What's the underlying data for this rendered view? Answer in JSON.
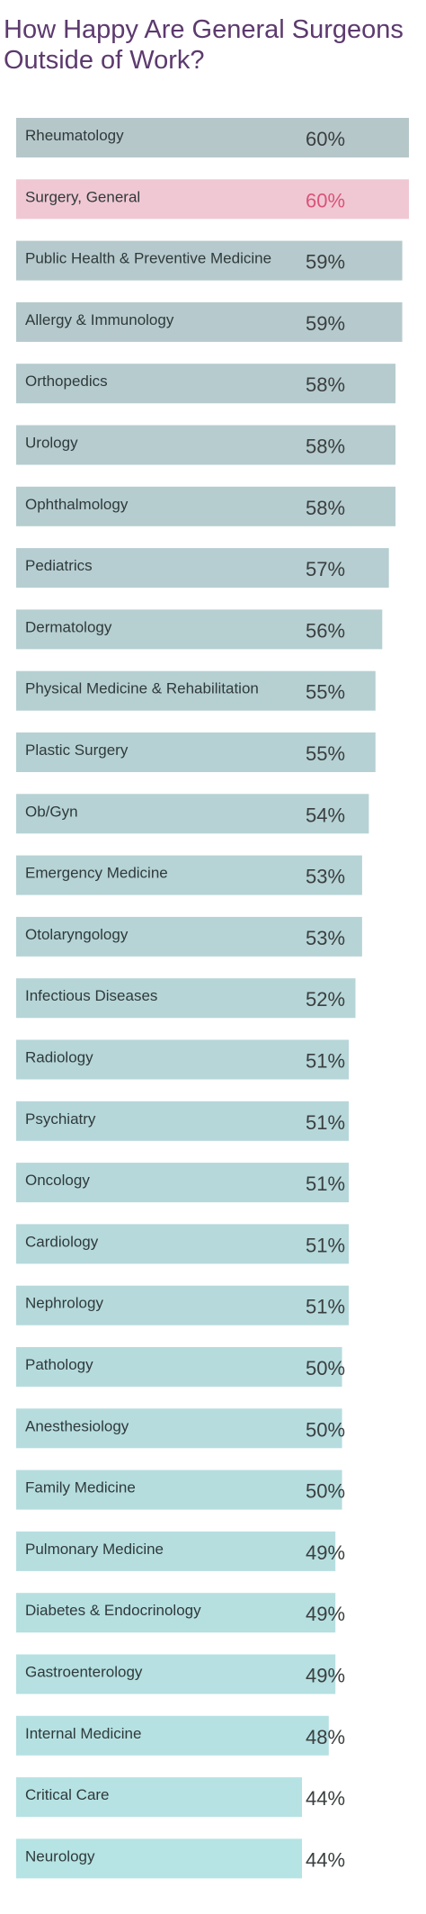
{
  "chart_data": {
    "type": "bar",
    "orientation": "horizontal",
    "title": "How Happy Are General Surgeons Outside of Work?",
    "categories": [
      "Rheumatology",
      "Surgery, General",
      "Public Health & Preventive Medicine",
      "Allergy & Immunology",
      "Orthopedics",
      "Urology",
      "Ophthalmology",
      "Pediatrics",
      "Dermatology",
      "Physical Medicine & Rehabilitation",
      "Plastic Surgery",
      "Ob/Gyn",
      "Emergency Medicine",
      "Otolaryngology",
      "Infectious Diseases",
      "Radiology",
      "Psychiatry",
      "Oncology",
      "Cardiology",
      "Nephrology",
      "Pathology",
      "Anesthesiology",
      "Family Medicine",
      "Pulmonary Medicine",
      "Diabetes & Endocrinology",
      "Gastroenterology",
      "Internal Medicine",
      "Critical Care",
      "Neurology"
    ],
    "values": [
      60,
      60,
      59,
      59,
      58,
      58,
      58,
      57,
      56,
      55,
      55,
      54,
      53,
      53,
      52,
      51,
      51,
      51,
      51,
      51,
      50,
      50,
      50,
      49,
      49,
      49,
      48,
      44,
      44
    ],
    "value_labels": [
      "60%",
      "60%",
      "59%",
      "59%",
      "58%",
      "58%",
      "58%",
      "57%",
      "56%",
      "55%",
      "55%",
      "54%",
      "53%",
      "53%",
      "52%",
      "51%",
      "51%",
      "51%",
      "51%",
      "51%",
      "50%",
      "50%",
      "50%",
      "49%",
      "49%",
      "49%",
      "48%",
      "44%",
      "44%"
    ],
    "highlight_category": "Surgery, General",
    "xlim": [
      0,
      60
    ],
    "grid": false,
    "legend": "none",
    "colors": {
      "bar_start": "#b6c7ca",
      "bar_end": "#b6e3e4",
      "highlight_bar": "#f0c8d3",
      "highlight_text": "#d9537a",
      "label_text": "#2f3a3b",
      "value_text": "#3a3f40",
      "title": "#5c3a6e"
    }
  }
}
